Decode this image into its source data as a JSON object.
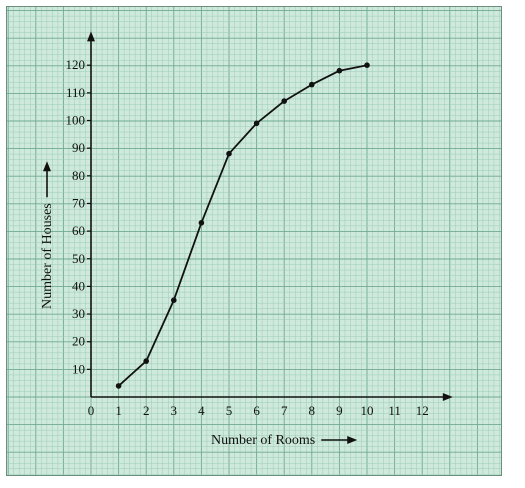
{
  "chart_data": {
    "type": "line",
    "title": "",
    "xlabel": "Number of Rooms",
    "ylabel": "Number of Houses",
    "x": [
      1,
      2,
      3,
      4,
      5,
      6,
      7,
      8,
      9,
      10
    ],
    "series": [
      {
        "values": [
          4,
          13,
          35,
          63,
          88,
          99,
          107,
          113,
          118,
          120
        ]
      }
    ],
    "xlim": [
      0,
      13
    ],
    "ylim": [
      0,
      125
    ],
    "x_ticks": [
      "0",
      "1",
      "2",
      "3",
      "4",
      "5",
      "6",
      "7",
      "8",
      "9",
      "10",
      "11",
      "12"
    ],
    "y_ticks": [
      "10",
      "20",
      "30",
      "40",
      "50",
      "60",
      "70",
      "80",
      "90",
      "100",
      "110",
      "120"
    ],
    "grid": true,
    "colors": {
      "paper": "#cfe9dd",
      "minor_grid": "#9ccdb6",
      "major_grid": "#6faa90",
      "line": "#111111"
    }
  }
}
